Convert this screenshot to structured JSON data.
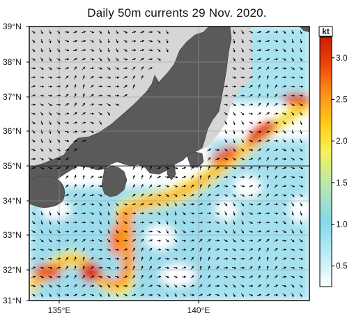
{
  "title": "Daily 50m currents 29 Nov. 2020.",
  "lat_labels": [
    "39°N",
    "38°N",
    "37°N",
    "36°N",
    "35°N",
    "34°N",
    "33°N",
    "32°N",
    "31°N"
  ],
  "lon_labels": [
    "135°E",
    "140°E"
  ],
  "colorbar": {
    "unit": "kt",
    "ticks": [
      "0.5",
      "1.0",
      "1.5",
      "2.0",
      "2.5",
      "3.0"
    ],
    "tick_values": [
      0.5,
      1.0,
      1.5,
      2.0,
      2.5,
      3.0
    ],
    "range": [
      0.25,
      3.25
    ],
    "colors": [
      "#ffffff",
      "#c8f0f8",
      "#86d8ea",
      "#bfe8a8",
      "#f4f25a",
      "#ffd21a",
      "#ff8c1a",
      "#e8400a",
      "#cc1e00"
    ]
  },
  "map_extent": {
    "lon": [
      134.0,
      144.0
    ],
    "lat": [
      31.0,
      39.0
    ]
  },
  "colors": {
    "land": "#5a5a5a",
    "shelf": "#d6d6d6",
    "grid": "#9a9a9a",
    "arrow": "#000000"
  }
}
